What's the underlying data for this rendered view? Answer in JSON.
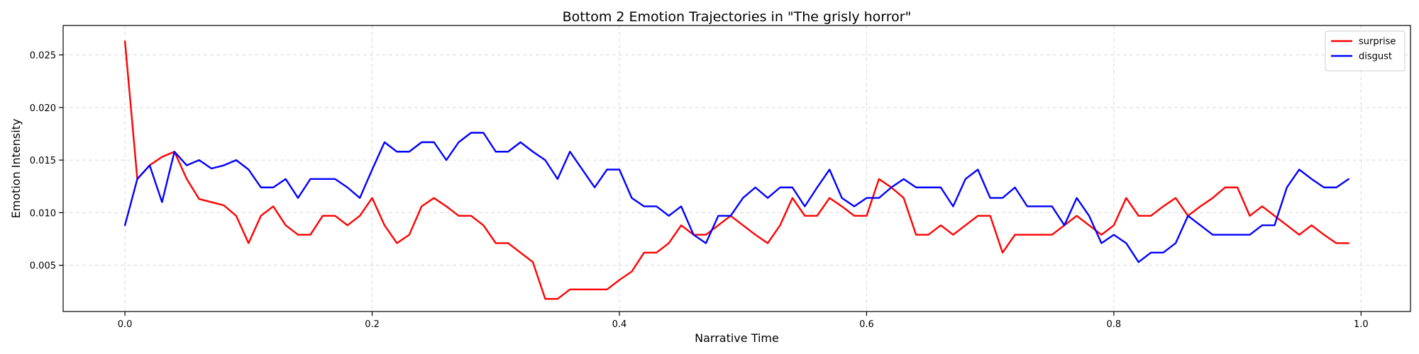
{
  "chart_data": {
    "type": "line",
    "title": "Bottom 2 Emotion Trajectories in \"The grisly horror\"",
    "xlabel": "Narrative Time",
    "ylabel": "Emotion Intensity",
    "xlim": [
      -0.05,
      1.04
    ],
    "ylim": [
      0.0006,
      0.0278
    ],
    "xticks": [
      0.0,
      0.2,
      0.4,
      0.6,
      0.8,
      1.0
    ],
    "xtick_labels": [
      "0.0",
      "0.2",
      "0.4",
      "0.6",
      "0.8",
      "1.0"
    ],
    "yticks": [
      0.005,
      0.01,
      0.015,
      0.02,
      0.025
    ],
    "ytick_labels": [
      "0.005",
      "0.010",
      "0.015",
      "0.020",
      "0.025"
    ],
    "grid": true,
    "legend_position": "top-right",
    "x": [
      0.0,
      0.01,
      0.02,
      0.03,
      0.04,
      0.05,
      0.06,
      0.07,
      0.08,
      0.09,
      0.1,
      0.11,
      0.12,
      0.13,
      0.14,
      0.15,
      0.16,
      0.17,
      0.18,
      0.19,
      0.2,
      0.21,
      0.22,
      0.23,
      0.24,
      0.25,
      0.26,
      0.27,
      0.28,
      0.29,
      0.3,
      0.31,
      0.32,
      0.33,
      0.34,
      0.35,
      0.36,
      0.37,
      0.38,
      0.39,
      0.4,
      0.41,
      0.42,
      0.43,
      0.44,
      0.45,
      0.46,
      0.47,
      0.48,
      0.49,
      0.5,
      0.51,
      0.52,
      0.53,
      0.54,
      0.55,
      0.56,
      0.57,
      0.58,
      0.59,
      0.6,
      0.61,
      0.62,
      0.63,
      0.64,
      0.65,
      0.66,
      0.67,
      0.68,
      0.69,
      0.7,
      0.71,
      0.72,
      0.73,
      0.74,
      0.75,
      0.76,
      0.77,
      0.78,
      0.79,
      0.8,
      0.81,
      0.82,
      0.83,
      0.84,
      0.85,
      0.86,
      0.87,
      0.88,
      0.89,
      0.9,
      0.91,
      0.92,
      0.93,
      0.94,
      0.95,
      0.96,
      0.97,
      0.98,
      0.99
    ],
    "series": [
      {
        "name": "surprise",
        "color": "#ff0000",
        "values": [
          0.0263,
          0.0132,
          0.0145,
          0.0153,
          0.0158,
          0.0132,
          0.0113,
          0.011,
          0.0107,
          0.0097,
          0.0071,
          0.0097,
          0.0106,
          0.0088,
          0.0079,
          0.0079,
          0.0097,
          0.0097,
          0.0088,
          0.0097,
          0.0114,
          0.0088,
          0.0071,
          0.0079,
          0.0106,
          0.0114,
          0.0106,
          0.0097,
          0.0097,
          0.0088,
          0.0071,
          0.0071,
          0.0062,
          0.0053,
          0.0018,
          0.0018,
          0.0027,
          0.0027,
          0.0027,
          0.0027,
          0.0036,
          0.0044,
          0.0062,
          0.0062,
          0.0071,
          0.0088,
          0.0079,
          0.0079,
          0.0088,
          0.0097,
          0.0088,
          0.0079,
          0.0071,
          0.0088,
          0.0114,
          0.0097,
          0.0097,
          0.0114,
          0.0106,
          0.0097,
          0.0097,
          0.0132,
          0.0124,
          0.0114,
          0.0079,
          0.0079,
          0.0088,
          0.0079,
          0.0088,
          0.0097,
          0.0097,
          0.0062,
          0.0079,
          0.0079,
          0.0079,
          0.0079,
          0.0088,
          0.0097,
          0.0088,
          0.0079,
          0.0088,
          0.0114,
          0.0097,
          0.0097,
          0.0106,
          0.0114,
          0.0097,
          0.0106,
          0.0114,
          0.0124,
          0.0124,
          0.0097,
          0.0106,
          0.0097,
          0.0088,
          0.0079,
          0.0088,
          0.0079,
          0.0071,
          0.0071
        ]
      },
      {
        "name": "disgust",
        "color": "#0000ff",
        "values": [
          0.0088,
          0.0132,
          0.0145,
          0.011,
          0.0158,
          0.0145,
          0.015,
          0.0142,
          0.0145,
          0.015,
          0.0141,
          0.0124,
          0.0124,
          0.0132,
          0.0114,
          0.0132,
          0.0132,
          0.0132,
          0.0124,
          0.0114,
          0.0141,
          0.0167,
          0.0158,
          0.0158,
          0.0167,
          0.0167,
          0.015,
          0.0167,
          0.0176,
          0.0176,
          0.0158,
          0.0158,
          0.0167,
          0.0158,
          0.015,
          0.0132,
          0.0158,
          0.0141,
          0.0124,
          0.0141,
          0.0141,
          0.0114,
          0.0106,
          0.0106,
          0.0097,
          0.0106,
          0.0079,
          0.0071,
          0.0097,
          0.0097,
          0.0114,
          0.0124,
          0.0114,
          0.0124,
          0.0124,
          0.0106,
          0.0124,
          0.0141,
          0.0114,
          0.0106,
          0.0114,
          0.0114,
          0.0124,
          0.0132,
          0.0124,
          0.0124,
          0.0124,
          0.0106,
          0.0132,
          0.0141,
          0.0114,
          0.0114,
          0.0124,
          0.0106,
          0.0106,
          0.0106,
          0.0088,
          0.0114,
          0.0097,
          0.0071,
          0.0079,
          0.0071,
          0.0053,
          0.0062,
          0.0062,
          0.0071,
          0.0097,
          0.0088,
          0.0079,
          0.0079,
          0.0079,
          0.0079,
          0.0088,
          0.0088,
          0.0124,
          0.0141,
          0.0132,
          0.0124,
          0.0124,
          0.0132
        ]
      }
    ]
  }
}
